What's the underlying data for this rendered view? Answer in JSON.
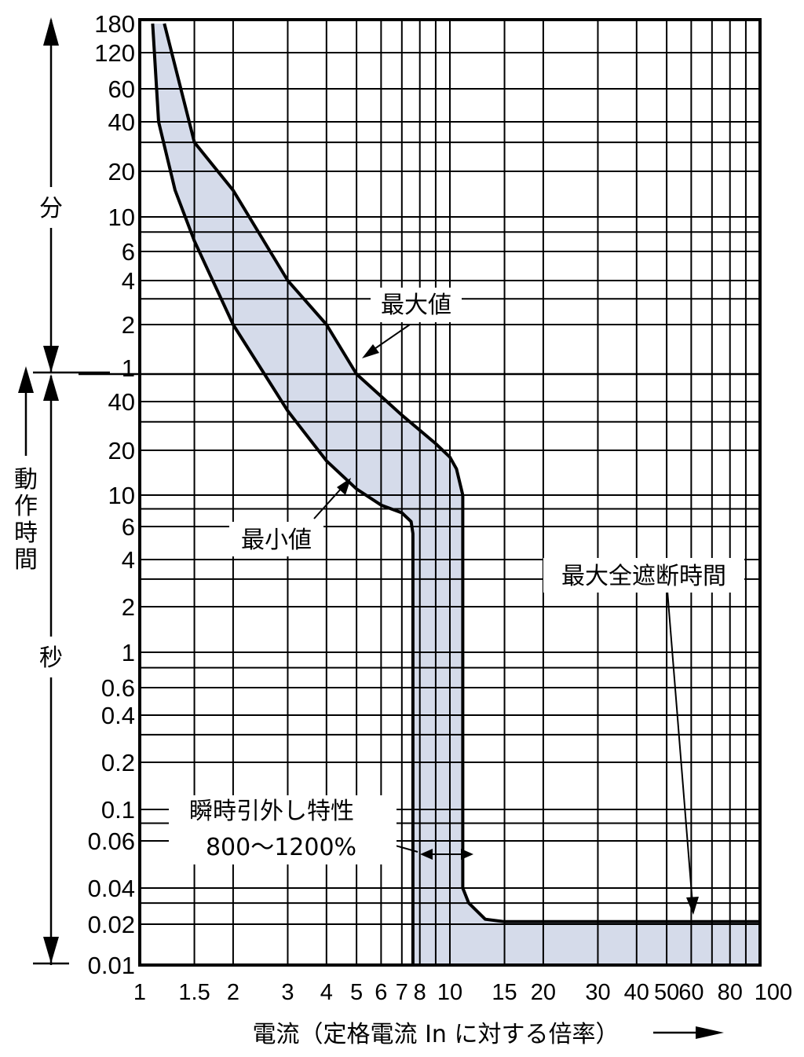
{
  "chart_data": {
    "type": "area",
    "xscale": "log",
    "yscale": "segmented",
    "xlim": [
      1,
      100
    ],
    "xlabel": "電流（定格電流 In に対する倍率）",
    "x_ticks": [
      "1",
      "1.5",
      "2",
      "3",
      "4",
      "5",
      "6",
      "7",
      "8",
      "10",
      "15",
      "20",
      "30",
      "40",
      "50",
      "60",
      "80",
      "100"
    ],
    "y_ticks_minutes": [
      "180",
      "120",
      "60",
      "40",
      "20",
      "10",
      "6",
      "4",
      "2",
      "1"
    ],
    "y_ticks_seconds": [
      "40",
      "20",
      "10",
      "6",
      "4",
      "2",
      "1",
      "0.6",
      "0.4",
      "0.2",
      "0.1",
      "0.06",
      "0.04",
      "0.02",
      "0.01"
    ],
    "ylabel": "動作時間",
    "unit_minutes": "分",
    "unit_seconds": "秒",
    "grid": true,
    "series": [
      {
        "name": "最大値",
        "x": [
          1.2,
          1.5,
          2,
          3,
          4,
          5,
          7,
          9,
          10,
          10.5,
          11,
          11,
          11.5,
          13,
          15,
          20,
          30,
          40,
          60,
          100
        ],
        "y_seconds": [
          10800,
          1800,
          900,
          240,
          120,
          60,
          33,
          22,
          18,
          15,
          10,
          0.04,
          0.03,
          0.022,
          0.021,
          0.021,
          0.021,
          0.021,
          0.021,
          0.021
        ]
      },
      {
        "name": "最小値",
        "x": [
          1.1,
          1.15,
          1.3,
          1.5,
          2,
          3,
          4,
          5,
          6,
          7,
          7.5,
          7.6,
          7.6
        ],
        "y_seconds": [
          10800,
          2400,
          900,
          420,
          120,
          35,
          17,
          11,
          8.5,
          7.5,
          6.5,
          5.5,
          0.01
        ]
      }
    ],
    "annotations": {
      "max": "最大値",
      "min": "最小値",
      "max_interrupt": "最大全遮断時間",
      "instant_1": "瞬時引外し特性",
      "instant_2": "800〜1200%"
    }
  }
}
